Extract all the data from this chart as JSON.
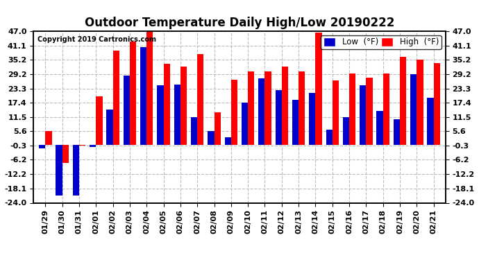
{
  "title": "Outdoor Temperature Daily High/Low 20190222",
  "copyright": "Copyright 2019 Cartronics.com",
  "legend_low_label": "Low  (°F)",
  "legend_high_label": "High  (°F)",
  "dates": [
    "01/29",
    "01/30",
    "01/31",
    "02/01",
    "02/02",
    "02/03",
    "02/04",
    "02/05",
    "02/06",
    "02/07",
    "02/08",
    "02/09",
    "02/10",
    "02/11",
    "02/12",
    "02/13",
    "02/14",
    "02/15",
    "02/16",
    "02/17",
    "02/18",
    "02/19",
    "02/20",
    "02/21"
  ],
  "high_values": [
    5.6,
    -7.5,
    -0.3,
    19.9,
    39.0,
    42.8,
    48.2,
    33.5,
    32.5,
    37.5,
    13.5,
    27.0,
    30.5,
    30.5,
    32.5,
    30.5,
    46.5,
    26.5,
    29.5,
    27.8,
    29.5,
    36.5,
    35.2,
    33.8
  ],
  "low_values": [
    -1.5,
    -21.0,
    -21.0,
    -1.0,
    14.5,
    28.5,
    40.5,
    24.5,
    25.0,
    11.5,
    5.6,
    3.0,
    17.4,
    27.5,
    22.5,
    18.5,
    21.5,
    6.3,
    11.5,
    24.5,
    14.0,
    10.5,
    29.2,
    19.4
  ],
  "ylim": [
    -24.0,
    47.0
  ],
  "yticks": [
    47.0,
    41.1,
    35.2,
    29.2,
    23.3,
    17.4,
    11.5,
    5.6,
    -0.3,
    -6.2,
    -12.2,
    -18.1,
    -24.0
  ],
  "bar_width": 0.38,
  "high_color": "#ff0000",
  "low_color": "#0000cc",
  "background_color": "#ffffff",
  "grid_color": "#bbbbbb",
  "title_fontsize": 12,
  "tick_fontsize": 8,
  "legend_fontsize": 8.5,
  "figwidth": 6.9,
  "figheight": 3.75,
  "dpi": 100
}
